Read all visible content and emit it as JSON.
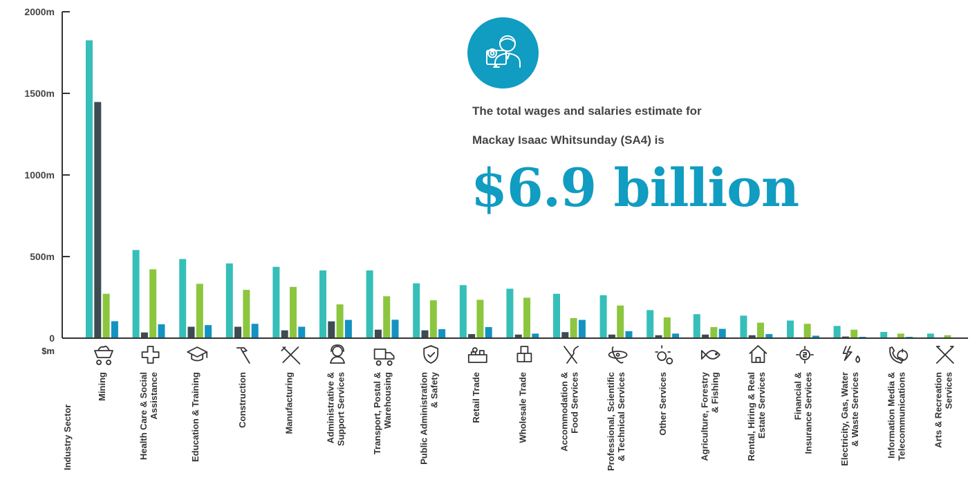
{
  "chart_data": {
    "type": "bar",
    "title": "",
    "ylabel": "$m",
    "xlabel": "Industry Sector",
    "ylim": [
      0,
      2000
    ],
    "y_ticks": [
      "0",
      "500m",
      "1000m",
      "1500m",
      "2000m"
    ],
    "categories": [
      "Mining",
      "Health Care & Social Assistance",
      "Education & Training",
      "Construction",
      "Manufacturing",
      "Administrative & Support Services",
      "Transport, Postal & Warehousing",
      "Public Administration & Safety",
      "Retail Trade",
      "Wholesale Trade",
      "Accommodation & Food Services",
      "Professional, Scientific & Technical Services",
      "Other Services",
      "Agriculture, Forestry & Fishing",
      "Rental, Hiring & Real Estate Services",
      "Financial & Insurance Services",
      "Electricity, Gas, Water & Waste Services",
      "Information Media & Telecommunications",
      "Arts & Recreation Services"
    ],
    "category_lines": [
      [
        "Mining"
      ],
      [
        "Health Care & Social",
        "Assistance"
      ],
      [
        "Education & Training"
      ],
      [
        "Construction"
      ],
      [
        "Manufacturing"
      ],
      [
        "Administrative &",
        "Support Services"
      ],
      [
        "Transport, Postal &",
        "Warehousing"
      ],
      [
        "Public Administration",
        "& Safety"
      ],
      [
        "Retail Trade"
      ],
      [
        "Wholesale Trade"
      ],
      [
        "Accommodation &",
        "Food Services"
      ],
      [
        "Professional, Scientific",
        "& Technical Services"
      ],
      [
        "Other Services"
      ],
      [
        "Agriculture, Forestry",
        "& Fishing"
      ],
      [
        "Rental, Hiring & Real",
        "Estate Services"
      ],
      [
        "Financial &",
        "Insurance Services"
      ],
      [
        "Electricity, Gas, Water",
        "& Waste Services"
      ],
      [
        "Information Media &",
        "Telecommunications"
      ],
      [
        "Arts & Recreation",
        "Services"
      ]
    ],
    "category_icons": [
      "mining-cart-icon",
      "medical-cross-icon",
      "graduation-cap-icon",
      "hammer-icon",
      "tools-icon",
      "support-agent-icon",
      "delivery-truck-icon",
      "shield-check-icon",
      "shop-counter-icon",
      "boxes-icon",
      "cutlery-icon",
      "atom-icon",
      "gears-icon",
      "fish-icon",
      "house-icon",
      "dollar-gear-icon",
      "power-water-icon",
      "phone-info-icon",
      "tools-cross-icon"
    ],
    "series": [
      {
        "color": "#35bfb8",
        "values": [
          1825,
          540,
          485,
          458,
          437,
          415,
          415,
          336,
          325,
          303,
          272,
          263,
          172,
          147,
          138,
          108,
          75,
          38,
          28
        ]
      },
      {
        "color": "#3d4b53",
        "values": [
          1447,
          35,
          70,
          70,
          48,
          103,
          52,
          48,
          25,
          22,
          37,
          22,
          18,
          22,
          18,
          5,
          10,
          3,
          3
        ]
      },
      {
        "color": "#8cc63f",
        "values": [
          272,
          422,
          333,
          296,
          314,
          207,
          257,
          232,
          235,
          248,
          123,
          200,
          127,
          68,
          95,
          88,
          52,
          28,
          18
        ]
      },
      {
        "color": "#1393c1",
        "values": [
          104,
          85,
          80,
          88,
          70,
          112,
          113,
          55,
          68,
          28,
          112,
          43,
          28,
          57,
          25,
          15,
          8,
          8,
          3
        ]
      }
    ]
  },
  "headline": {
    "line1": "The total wages and salaries estimate for",
    "line2": "Mackay Isaac Whitsunday (SA4) is",
    "value": "$6.9 billion"
  },
  "badge_icon": "worker-settings-icon",
  "colors": {
    "accent": "#119cc1",
    "axis": "#333333"
  }
}
